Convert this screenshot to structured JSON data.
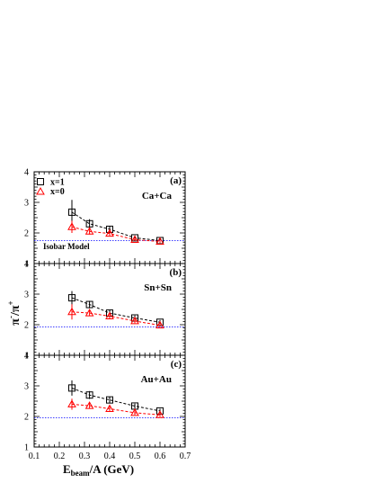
{
  "chart_data": {
    "type": "scatter",
    "xlabel": {
      "main": "E",
      "sub": "beam",
      "rest": "/A (GeV)"
    },
    "ylabel": {
      "a": "π",
      "a_sup": "-",
      "slash": "/",
      "b": "π",
      "b_sup": "+"
    },
    "xlim": [
      0.1,
      0.7
    ],
    "ylim": [
      1,
      4
    ],
    "x_ticks": [
      "0.1",
      "0.2",
      "0.3",
      "0.4",
      "0.5",
      "0.6",
      "0.7"
    ],
    "y_ticks": [
      "1",
      "2",
      "3",
      "4"
    ],
    "legend": [
      {
        "label": "x=1",
        "color": "#000000",
        "marker": "open-square"
      },
      {
        "label": "x=0",
        "color": "#ff0000",
        "marker": "open-triangle"
      }
    ],
    "isobar_label": "Isobar Model",
    "colors": {
      "x1": "#000000",
      "x0": "#ff0000",
      "isobar": "#0000ff"
    },
    "panels": [
      {
        "tag": "(a)",
        "system": "Ca+Ca",
        "isobar": 1.75,
        "series": [
          {
            "name": "x=1",
            "x": [
              0.25,
              0.32,
              0.4,
              0.5,
              0.6
            ],
            "y": [
              2.68,
              2.3,
              2.12,
              1.84,
              1.75
            ],
            "err": [
              0.4,
              0.15,
              0.1,
              0.07,
              0.06
            ]
          },
          {
            "name": "x=0",
            "x": [
              0.25,
              0.32,
              0.4,
              0.5,
              0.6
            ],
            "y": [
              2.2,
              2.05,
              1.98,
              1.78,
              1.72
            ],
            "err": [
              0.2,
              0.1,
              0.07,
              0.05,
              0.05
            ]
          }
        ]
      },
      {
        "tag": "(b)",
        "system": "Sn+Sn",
        "isobar": 1.93,
        "series": [
          {
            "name": "x=1",
            "x": [
              0.25,
              0.32,
              0.4,
              0.5,
              0.6
            ],
            "y": [
              2.88,
              2.66,
              2.38,
              2.22,
              2.08
            ],
            "err": [
              0.22,
              0.12,
              0.1,
              0.08,
              0.07
            ]
          },
          {
            "name": "x=0",
            "x": [
              0.25,
              0.32,
              0.4,
              0.5,
              0.6
            ],
            "y": [
              2.42,
              2.38,
              2.28,
              2.12,
              1.98
            ],
            "err": [
              0.25,
              0.1,
              0.08,
              0.07,
              0.06
            ]
          }
        ]
      },
      {
        "tag": "(c)",
        "system": "Au+Au",
        "isobar": 1.96,
        "series": [
          {
            "name": "x=1",
            "x": [
              0.25,
              0.32,
              0.4,
              0.5,
              0.6
            ],
            "y": [
              2.93,
              2.7,
              2.54,
              2.34,
              2.18
            ],
            "err": [
              0.25,
              0.13,
              0.1,
              0.08,
              0.07
            ]
          },
          {
            "name": "x=0",
            "x": [
              0.25,
              0.32,
              0.4,
              0.5,
              0.6
            ],
            "y": [
              2.4,
              2.35,
              2.25,
              2.12,
              2.05
            ],
            "err": [
              0.18,
              0.1,
              0.08,
              0.07,
              0.06
            ]
          }
        ]
      }
    ]
  }
}
